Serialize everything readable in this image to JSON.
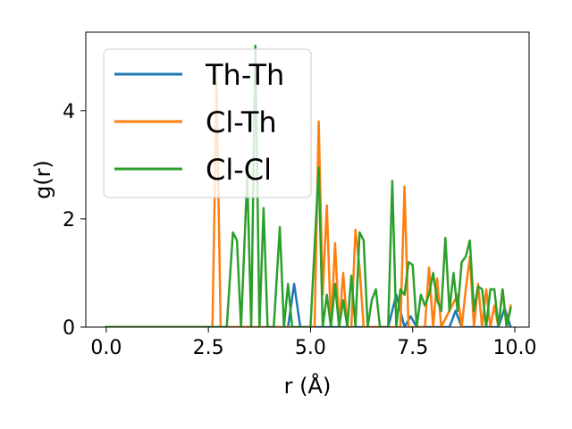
{
  "chart_data": {
    "type": "line",
    "xlabel": "r (Å)",
    "ylabel": "g(r)",
    "xlim": [
      -0.5,
      10.35
    ],
    "ylim": [
      0,
      5.45
    ],
    "xticks": [
      0.0,
      2.5,
      5.0,
      7.5,
      10.0
    ],
    "xtick_labels": [
      "0.0",
      "2.5",
      "5.0",
      "7.5",
      "10.0"
    ],
    "yticks": [
      0,
      2,
      4
    ],
    "ytick_labels": [
      "0",
      "2",
      "4"
    ],
    "grid": false,
    "legend_position": "top-left",
    "series": [
      {
        "name": "Th-Th",
        "color": "#1f77b4",
        "x": [
          0.0,
          4.45,
          4.6,
          4.75,
          5.0,
          6.9,
          7.1,
          7.3,
          7.45,
          7.6,
          8.4,
          8.55,
          8.7,
          9.6,
          9.75,
          9.9
        ],
        "y": [
          0,
          0,
          0.8,
          0,
          0,
          0,
          0.6,
          0,
          0.2,
          0,
          0,
          0.3,
          0,
          0,
          0.35,
          0
        ]
      },
      {
        "name": "Cl-Th",
        "color": "#ff7f0e",
        "x": [
          0.0,
          2.6,
          2.7,
          2.8,
          2.9,
          5.1,
          5.2,
          5.3,
          5.4,
          5.5,
          5.6,
          5.7,
          5.8,
          5.9,
          6.0,
          6.1,
          6.2,
          6.3,
          6.4,
          7.2,
          7.3,
          7.4,
          7.5,
          7.8,
          7.9,
          8.0,
          8.1,
          8.2,
          8.6,
          8.7,
          8.8,
          8.9,
          9.0,
          9.1,
          9.2,
          9.3,
          9.4,
          9.5,
          9.6,
          9.7,
          9.8,
          9.9
        ],
        "y": [
          0,
          0,
          4.5,
          0,
          0,
          0,
          3.8,
          0.6,
          2.25,
          0,
          1.55,
          0,
          1.0,
          0,
          0,
          1.8,
          1.1,
          0,
          0,
          0,
          2.6,
          0,
          0,
          0,
          1.1,
          0,
          0.9,
          0,
          0.6,
          0,
          0.7,
          1.3,
          0,
          0.8,
          0,
          0.7,
          0,
          0.4,
          0,
          0.7,
          0,
          0.4
        ]
      },
      {
        "name": "Cl-Cl",
        "color": "#2ca02c",
        "x": [
          0.0,
          2.95,
          3.1,
          3.2,
          3.3,
          3.45,
          3.55,
          3.65,
          3.75,
          3.85,
          3.95,
          4.1,
          4.25,
          4.35,
          4.45,
          4.55,
          4.65,
          5.0,
          5.2,
          5.3,
          5.4,
          5.5,
          5.6,
          5.7,
          5.8,
          5.9,
          6.0,
          6.1,
          6.2,
          6.3,
          6.4,
          6.5,
          6.6,
          6.7,
          6.8,
          6.9,
          7.0,
          7.1,
          7.2,
          7.3,
          7.4,
          7.5,
          7.6,
          7.7,
          7.8,
          7.9,
          8.0,
          8.1,
          8.2,
          8.3,
          8.4,
          8.5,
          8.6,
          8.7,
          8.8,
          8.9,
          9.0,
          9.1,
          9.2,
          9.3,
          9.4,
          9.5,
          9.6,
          9.7,
          9.8,
          9.9
        ],
        "y": [
          0,
          0,
          1.75,
          1.6,
          0,
          2.8,
          0,
          5.2,
          0,
          2.2,
          0,
          0,
          1.85,
          0,
          0.8,
          0,
          0,
          0,
          2.95,
          0,
          0.6,
          0,
          0.8,
          0,
          0.5,
          0,
          0.95,
          0,
          1.75,
          1.6,
          0,
          0.5,
          0.7,
          0,
          0,
          0,
          2.7,
          0,
          0.7,
          0.6,
          1.2,
          1.15,
          0,
          0.6,
          0.4,
          0.6,
          1.0,
          0.5,
          0.3,
          1.65,
          0.3,
          1.0,
          0.3,
          1.2,
          1.3,
          1.6,
          0.3,
          0.75,
          0.7,
          0,
          0.7,
          0.7,
          0,
          0.7,
          0,
          0.35
        ]
      }
    ]
  }
}
